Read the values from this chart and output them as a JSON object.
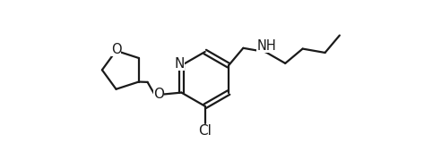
{
  "bg_color": "#ffffff",
  "line_color": "#1a1a1a",
  "line_width": 1.6,
  "font_size": 10.5,
  "figsize": [
    4.73,
    1.69
  ],
  "dpi": 100,
  "xlim": [
    0,
    10
  ],
  "ylim": [
    -0.5,
    3.8
  ]
}
